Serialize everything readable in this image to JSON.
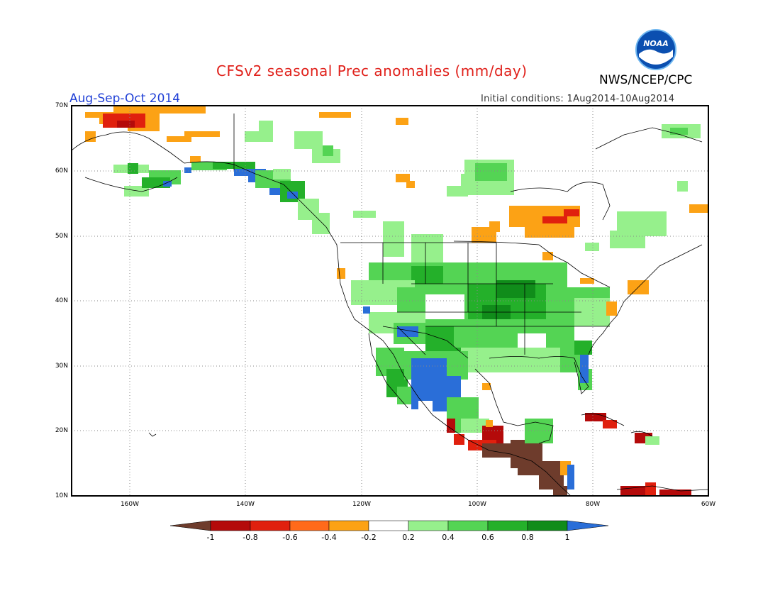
{
  "header": {
    "title": "CFSv2 seasonal Prec anomalies (mm/day)",
    "org": "NWS/NCEP/CPC",
    "season": "Aug-Sep-Oct 2014",
    "initial_conditions": "Initial conditions: 1Aug2014-10Aug2014",
    "logo_text": "NOAA"
  },
  "map": {
    "lat_labels": [
      "70N",
      "60N",
      "50N",
      "40N",
      "30N",
      "20N",
      "10N"
    ],
    "lon_labels": [
      "160W",
      "140W",
      "120W",
      "100W",
      "80W",
      "60W"
    ],
    "lon_range": [
      -170,
      -60
    ],
    "lat_range": [
      10,
      70
    ]
  },
  "colorbar": {
    "labels": [
      "-1",
      "-0.8",
      "-0.6",
      "-0.4",
      "-0.2",
      "0.2",
      "0.4",
      "0.6",
      "0.8",
      "1"
    ],
    "colors": {
      "lt_-1": "#6e3c2c",
      "-1_-0.8": "#b40a0a",
      "-0.8_-0.6": "#e0200e",
      "-0.6_-0.4": "#ff6a1a",
      "-0.4_-0.2": "#fca215",
      "-0.2_0.2": "#ffffff",
      "0.2_0.4": "#96f08c",
      "0.4_0.6": "#54d454",
      "0.6_0.8": "#24b02a",
      "0.8_1": "#108c1a",
      "gt_1": "#2a6ed8"
    }
  }
}
